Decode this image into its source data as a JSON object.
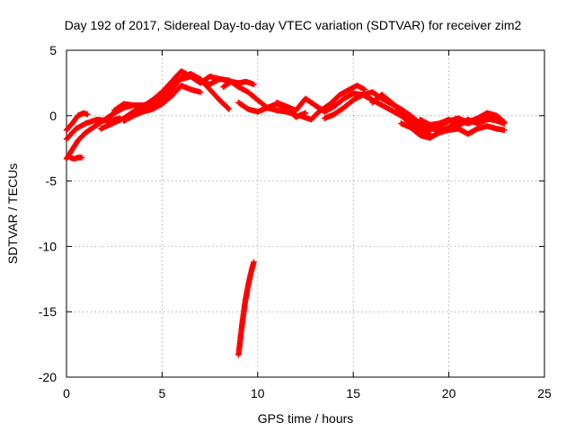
{
  "chart_data": {
    "type": "scatter",
    "title": "Day 192 of 2017, Sidereal Day-to-day VTEC variation (SDTVAR) for receiver zim2",
    "xlabel": "GPS time / hours",
    "ylabel": "SDTVAR / TECUs",
    "xlim": [
      0,
      25
    ],
    "ylim": [
      -20,
      5
    ],
    "grid": true,
    "xticks": [
      "0",
      "5",
      "10",
      "15",
      "20",
      "25"
    ],
    "yticks": [
      "5",
      "0",
      "-5",
      "-10",
      "-15",
      "-20"
    ],
    "series": [
      {
        "name": "SDTVAR",
        "color": "#ff0000",
        "marker": "plus",
        "tracks": [
          [
            [
              0.0,
              -1.1
            ],
            [
              0.3,
              -0.6
            ],
            [
              0.6,
              0.0
            ],
            [
              0.9,
              0.2
            ],
            [
              1.1,
              0.1
            ]
          ],
          [
            [
              0.0,
              -1.8
            ],
            [
              0.5,
              -1.0
            ],
            [
              1.0,
              -0.6
            ],
            [
              1.6,
              -0.3
            ],
            [
              2.2,
              -0.4
            ],
            [
              2.8,
              -0.2
            ]
          ],
          [
            [
              0.0,
              -3.3
            ],
            [
              0.3,
              -2.6
            ],
            [
              0.6,
              -1.9
            ],
            [
              1.0,
              -1.3
            ],
            [
              1.5,
              -0.8
            ],
            [
              2.0,
              -0.3
            ],
            [
              2.5,
              0.2
            ],
            [
              3.0,
              0.6
            ],
            [
              3.5,
              0.8
            ],
            [
              4.0,
              0.8
            ],
            [
              4.5,
              0.9
            ],
            [
              5.0,
              1.2
            ],
            [
              5.5,
              2.0
            ],
            [
              6.0,
              2.9
            ],
            [
              6.5,
              3.2
            ],
            [
              7.0,
              2.8
            ],
            [
              7.5,
              2.0
            ],
            [
              8.0,
              1.2
            ],
            [
              8.5,
              0.5
            ]
          ],
          [
            [
              0.2,
              -3.2
            ],
            [
              0.4,
              -3.3
            ],
            [
              0.6,
              -3.2
            ],
            [
              0.8,
              -3.2
            ]
          ],
          [
            [
              1.8,
              -1.0
            ],
            [
              2.4,
              -0.6
            ],
            [
              3.0,
              -0.2
            ],
            [
              3.5,
              0.3
            ],
            [
              4.0,
              0.6
            ],
            [
              4.5,
              0.9
            ],
            [
              5.0,
              1.6
            ],
            [
              5.5,
              2.3
            ],
            [
              6.0,
              2.8
            ],
            [
              6.5,
              3.0
            ],
            [
              7.0,
              2.6
            ],
            [
              7.5,
              2.4
            ],
            [
              8.0,
              2.8
            ],
            [
              8.5,
              2.7
            ],
            [
              9.0,
              2.2
            ],
            [
              9.5,
              1.8
            ],
            [
              10.0,
              1.2
            ],
            [
              10.5,
              0.6
            ],
            [
              11.0,
              0.4
            ],
            [
              11.5,
              0.3
            ],
            [
              12.0,
              0.1
            ]
          ],
          [
            [
              2.5,
              0.4
            ],
            [
              3.0,
              0.9
            ],
            [
              3.5,
              0.8
            ],
            [
              4.0,
              0.7
            ],
            [
              4.5,
              1.2
            ],
            [
              5.0,
              1.8
            ],
            [
              5.5,
              2.6
            ],
            [
              6.0,
              3.4
            ],
            [
              6.5,
              3.0
            ],
            [
              7.0,
              2.5
            ],
            [
              7.5,
              3.0
            ],
            [
              8.0,
              2.8
            ]
          ],
          [
            [
              3.0,
              -0.4
            ],
            [
              3.5,
              0.0
            ],
            [
              4.0,
              0.3
            ],
            [
              4.5,
              0.5
            ],
            [
              5.0,
              0.9
            ],
            [
              5.5,
              1.5
            ],
            [
              6.0,
              2.3
            ],
            [
              6.5,
              2.0
            ],
            [
              7.0,
              1.8
            ]
          ],
          [
            [
              8.2,
              2.2
            ],
            [
              8.6,
              2.6
            ],
            [
              9.0,
              2.5
            ],
            [
              9.4,
              2.6
            ],
            [
              9.8,
              2.4
            ]
          ],
          [
            [
              9.0,
              1.0
            ],
            [
              9.5,
              0.5
            ],
            [
              10.0,
              0.3
            ],
            [
              10.5,
              0.6
            ],
            [
              11.0,
              0.9
            ],
            [
              11.5,
              0.6
            ],
            [
              12.0,
              -0.1
            ],
            [
              12.5,
              0.2
            ]
          ],
          [
            [
              11.0,
              1.0
            ],
            [
              11.5,
              0.7
            ],
            [
              12.0,
              0.4
            ],
            [
              12.5,
              1.3
            ],
            [
              13.0,
              0.8
            ],
            [
              13.5,
              0.3
            ],
            [
              14.0,
              0.7
            ],
            [
              14.5,
              1.3
            ],
            [
              15.0,
              1.7
            ],
            [
              15.5,
              1.6
            ],
            [
              16.0,
              1.2
            ],
            [
              16.5,
              0.8
            ],
            [
              17.0,
              0.4
            ],
            [
              17.5,
              0.0
            ],
            [
              18.0,
              -0.6
            ],
            [
              18.5,
              -1.3
            ],
            [
              19.0,
              -1.4
            ]
          ],
          [
            [
              12.2,
              0.0
            ],
            [
              12.8,
              -0.3
            ],
            [
              13.2,
              0.3
            ],
            [
              13.8,
              0.9
            ],
            [
              14.3,
              1.6
            ],
            [
              14.8,
              2.0
            ],
            [
              15.2,
              2.3
            ],
            [
              15.6,
              2.0
            ]
          ],
          [
            [
              13.5,
              -0.2
            ],
            [
              14.0,
              0.1
            ],
            [
              14.5,
              0.6
            ],
            [
              15.0,
              1.2
            ],
            [
              15.5,
              1.6
            ],
            [
              16.0,
              1.8
            ],
            [
              16.5,
              1.3
            ],
            [
              17.0,
              0.9
            ],
            [
              17.5,
              0.5
            ],
            [
              18.0,
              0.0
            ],
            [
              18.5,
              -0.6
            ],
            [
              19.0,
              -0.9
            ],
            [
              19.5,
              -1.2
            ],
            [
              20.0,
              -0.9
            ],
            [
              20.5,
              -0.4
            ],
            [
              21.0,
              -0.6
            ],
            [
              21.5,
              -0.3
            ],
            [
              22.0,
              -0.2
            ],
            [
              22.5,
              -0.4
            ],
            [
              22.9,
              -0.6
            ]
          ],
          [
            [
              16.0,
              1.0
            ],
            [
              16.5,
              1.6
            ],
            [
              17.0,
              1.0
            ],
            [
              17.5,
              0.3
            ],
            [
              18.0,
              -0.4
            ],
            [
              18.5,
              -0.9
            ],
            [
              19.0,
              -1.1
            ],
            [
              19.5,
              -0.8
            ],
            [
              20.0,
              -0.4
            ],
            [
              20.5,
              -0.2
            ],
            [
              21.0,
              -0.5
            ],
            [
              21.5,
              -0.2
            ],
            [
              22.0,
              0.2
            ],
            [
              22.5,
              0.0
            ],
            [
              22.9,
              -0.5
            ]
          ],
          [
            [
              17.5,
              -0.6
            ],
            [
              18.0,
              -0.9
            ],
            [
              18.5,
              -1.5
            ],
            [
              19.0,
              -1.7
            ],
            [
              19.5,
              -1.3
            ],
            [
              20.0,
              -1.1
            ],
            [
              20.5,
              -1.0
            ],
            [
              21.0,
              -1.4
            ],
            [
              21.5,
              -1.0
            ],
            [
              22.0,
              -0.8
            ],
            [
              22.5,
              -1.0
            ],
            [
              22.9,
              -1.1
            ]
          ],
          [
            [
              18.5,
              -0.3
            ],
            [
              19.0,
              -0.7
            ],
            [
              19.5,
              -0.6
            ],
            [
              20.0,
              -0.3
            ],
            [
              20.5,
              -0.8
            ],
            [
              21.0,
              -0.3
            ],
            [
              21.5,
              -0.6
            ],
            [
              22.0,
              -0.3
            ],
            [
              22.5,
              -0.2
            ]
          ],
          [
            [
              9.0,
              -18.3
            ],
            [
              9.1,
              -17.0
            ],
            [
              9.2,
              -15.8
            ],
            [
              9.35,
              -14.2
            ],
            [
              9.5,
              -13.0
            ],
            [
              9.65,
              -12.0
            ],
            [
              9.8,
              -11.2
            ]
          ]
        ]
      }
    ]
  }
}
